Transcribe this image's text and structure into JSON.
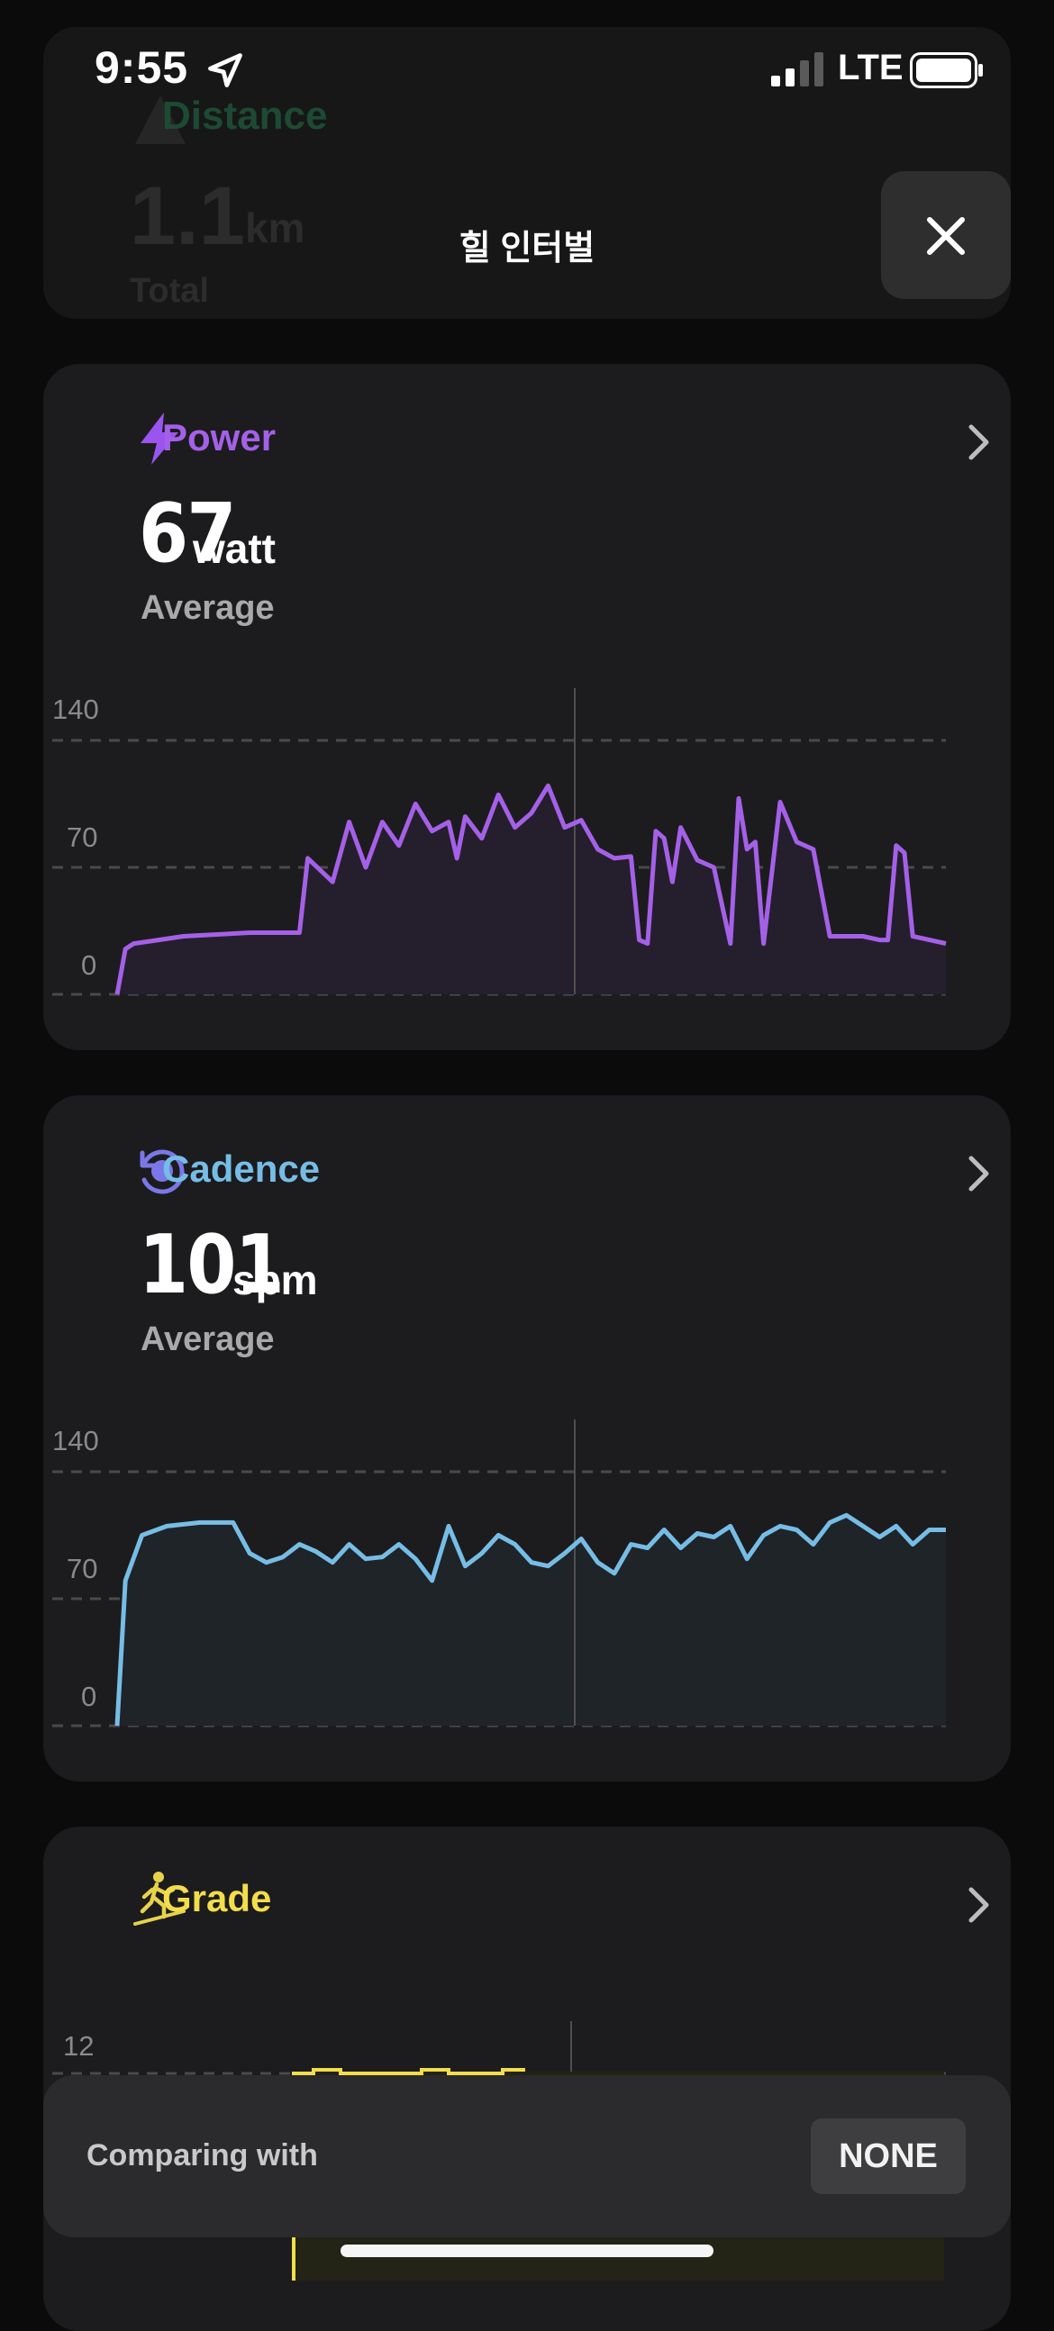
{
  "status_bar": {
    "time": "9:55",
    "network": "LTE"
  },
  "header": {
    "title": "힐 인터벌"
  },
  "distance_card": {
    "title": "Distance",
    "value": "1.1",
    "unit": "km",
    "label": "Total"
  },
  "power": {
    "title": "Power",
    "value": "67",
    "unit": "watt",
    "label": "Average",
    "color": "#a560e8",
    "yticks": [
      "140",
      "70",
      "0"
    ]
  },
  "cadence": {
    "title": "Cadence",
    "value": "101",
    "unit": "spm",
    "label": "Average",
    "color": "#76bde6",
    "yticks": [
      "140",
      "70",
      "0"
    ]
  },
  "grade": {
    "title": "Grade",
    "color": "#f2dd4c",
    "yticks": [
      "12"
    ]
  },
  "compare_bar": {
    "label": "Comparing with",
    "button": "NONE"
  },
  "chart_data": [
    {
      "type": "line",
      "name": "power",
      "ylim": [
        0,
        140
      ],
      "x": [
        0,
        1,
        2,
        5,
        8,
        12,
        16,
        22,
        23,
        26,
        28,
        30,
        32,
        34,
        36,
        38,
        40,
        41,
        42,
        44,
        46,
        48,
        50,
        52,
        54,
        56,
        58,
        60,
        62,
        63,
        64,
        65,
        66,
        67,
        68,
        70,
        72,
        74,
        75,
        76,
        77,
        78,
        80,
        82,
        84,
        86,
        88,
        90,
        92,
        93,
        94,
        95,
        96,
        100
      ],
      "y": [
        0,
        25,
        28,
        30,
        32,
        33,
        34,
        34,
        75,
        62,
        95,
        70,
        95,
        82,
        105,
        90,
        95,
        75,
        98,
        86,
        110,
        92,
        100,
        115,
        92,
        96,
        80,
        75,
        76,
        30,
        28,
        90,
        86,
        62,
        92,
        74,
        70,
        28,
        108,
        80,
        84,
        28,
        106,
        84,
        80,
        32,
        32,
        32,
        30,
        30,
        82,
        78,
        32,
        28
      ]
    },
    {
      "type": "line",
      "name": "cadence",
      "ylim": [
        0,
        140
      ],
      "x": [
        0,
        1,
        3,
        6,
        10,
        14,
        16,
        18,
        20,
        22,
        24,
        26,
        28,
        30,
        32,
        34,
        36,
        38,
        40,
        42,
        44,
        46,
        48,
        50,
        52,
        54,
        56,
        58,
        60,
        62,
        64,
        66,
        68,
        70,
        72,
        74,
        76,
        78,
        80,
        82,
        84,
        86,
        88,
        90,
        92,
        94,
        96,
        98,
        100
      ],
      "y": [
        0,
        80,
        105,
        110,
        112,
        112,
        95,
        90,
        93,
        100,
        96,
        90,
        100,
        92,
        93,
        100,
        92,
        80,
        110,
        88,
        95,
        105,
        100,
        90,
        88,
        95,
        103,
        90,
        84,
        100,
        98,
        108,
        98,
        106,
        104,
        110,
        92,
        105,
        110,
        108,
        100,
        112,
        116,
        110,
        104,
        110,
        100,
        108,
        108
      ]
    }
  ]
}
